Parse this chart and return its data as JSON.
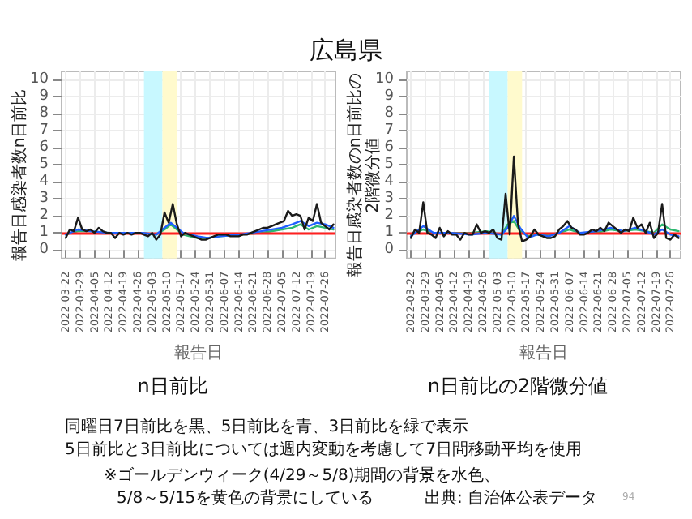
{
  "chart_data": [
    {
      "type": "line",
      "title": "n日前比",
      "xlabel": "報告日",
      "ylabel": "報告日感染者数n日前比",
      "annotations": [
        "広島県"
      ],
      "xlim": [
        "2022-03-20",
        "2022-07-31"
      ],
      "xticks": [
        "2022-03-22",
        "2022-03-29",
        "2022-04-05",
        "2022-04-12",
        "2022-04-19",
        "2022-04-26",
        "2022-05-03",
        "2022-05-10",
        "2022-05-17",
        "2022-05-24",
        "2022-05-31",
        "2022-06-07",
        "2022-06-14",
        "2022-06-21",
        "2022-06-28",
        "2022-07-05",
        "2022-07-12",
        "2022-07-19",
        "2022-07-26"
      ],
      "ylim": [
        -0.5,
        10.5
      ],
      "yticks": [
        0,
        1,
        2,
        3,
        4,
        5,
        6,
        7,
        8,
        9,
        10
      ],
      "grid": true,
      "marker": "none",
      "ref_lines": [
        {
          "axis": "y",
          "value": 1,
          "color": "#ff2020"
        }
      ],
      "bands": [
        {
          "axis": "x",
          "from": "2022-04-29",
          "to": "2022-05-08",
          "color": "#c8f8ff"
        },
        {
          "axis": "x",
          "from": "2022-05-08",
          "to": "2022-05-15",
          "color": "#fffacd"
        }
      ],
      "series": [
        {
          "color": "#1a1a1a",
          "x": [
            "2022-03-22",
            "2022-03-24",
            "2022-03-26",
            "2022-03-28",
            "2022-03-30",
            "2022-04-01",
            "2022-04-03",
            "2022-04-05",
            "2022-04-07",
            "2022-04-09",
            "2022-04-11",
            "2022-04-13",
            "2022-04-15",
            "2022-04-17",
            "2022-04-19",
            "2022-04-21",
            "2022-04-23",
            "2022-04-25",
            "2022-04-27",
            "2022-04-29",
            "2022-05-01",
            "2022-05-03",
            "2022-05-05",
            "2022-05-07",
            "2022-05-09",
            "2022-05-11",
            "2022-05-13",
            "2022-05-15",
            "2022-05-17",
            "2022-05-19",
            "2022-05-21",
            "2022-05-23",
            "2022-05-25",
            "2022-05-27",
            "2022-05-29",
            "2022-05-31",
            "2022-06-02",
            "2022-06-04",
            "2022-06-06",
            "2022-06-08",
            "2022-06-10",
            "2022-06-12",
            "2022-06-14",
            "2022-06-16",
            "2022-06-18",
            "2022-06-20",
            "2022-06-22",
            "2022-06-24",
            "2022-06-26",
            "2022-06-28",
            "2022-06-30",
            "2022-07-02",
            "2022-07-04",
            "2022-07-06",
            "2022-07-08",
            "2022-07-10",
            "2022-07-12",
            "2022-07-14",
            "2022-07-16",
            "2022-07-18",
            "2022-07-20",
            "2022-07-22",
            "2022-07-24",
            "2022-07-26",
            "2022-07-28",
            "2022-07-30"
          ],
          "values": [
            0.7,
            1.2,
            1.1,
            1.9,
            1.2,
            1.1,
            1.2,
            1.0,
            1.3,
            1.1,
            1.0,
            1.0,
            0.7,
            1.0,
            0.9,
            1.0,
            0.9,
            1.0,
            1.0,
            0.9,
            0.8,
            1.0,
            0.6,
            0.9,
            2.2,
            1.6,
            2.7,
            1.5,
            0.8,
            1.0,
            0.9,
            0.8,
            0.7,
            0.6,
            0.6,
            0.7,
            0.8,
            0.9,
            0.9,
            0.9,
            0.8,
            0.8,
            0.8,
            0.9,
            0.9,
            1.0,
            1.1,
            1.2,
            1.3,
            1.3,
            1.4,
            1.5,
            1.6,
            1.7,
            2.3,
            2.0,
            2.1,
            2.0,
            1.2,
            1.9,
            1.7,
            2.7,
            1.6,
            1.4,
            1.2,
            1.5
          ]
        },
        {
          "color": "#1f5fff",
          "x": [
            "2022-03-22",
            "2022-03-28",
            "2022-04-03",
            "2022-04-12",
            "2022-04-20",
            "2022-04-28",
            "2022-05-05",
            "2022-05-09",
            "2022-05-12",
            "2022-05-15",
            "2022-05-18",
            "2022-05-25",
            "2022-05-30",
            "2022-06-05",
            "2022-06-15",
            "2022-06-25",
            "2022-07-05",
            "2022-07-10",
            "2022-07-14",
            "2022-07-18",
            "2022-07-22",
            "2022-07-26",
            "2022-07-30"
          ],
          "values": [
            0.9,
            1.2,
            1.1,
            1.0,
            1.0,
            1.0,
            0.9,
            1.3,
            1.6,
            1.3,
            1.0,
            0.8,
            0.7,
            0.8,
            0.9,
            1.1,
            1.3,
            1.5,
            1.7,
            1.4,
            1.6,
            1.5,
            1.3
          ]
        },
        {
          "color": "#2db870",
          "x": [
            "2022-03-22",
            "2022-03-28",
            "2022-04-03",
            "2022-04-12",
            "2022-04-20",
            "2022-04-28",
            "2022-05-05",
            "2022-05-09",
            "2022-05-12",
            "2022-05-15",
            "2022-05-18",
            "2022-05-25",
            "2022-05-30",
            "2022-06-05",
            "2022-06-15",
            "2022-06-25",
            "2022-07-05",
            "2022-07-10",
            "2022-07-14",
            "2022-07-18",
            "2022-07-22",
            "2022-07-26",
            "2022-07-30"
          ],
          "values": [
            0.9,
            1.1,
            1.1,
            1.0,
            1.0,
            1.0,
            0.9,
            1.2,
            1.5,
            1.2,
            0.9,
            0.7,
            0.7,
            0.8,
            0.9,
            1.0,
            1.2,
            1.3,
            1.5,
            1.2,
            1.4,
            1.3,
            1.2
          ]
        }
      ]
    },
    {
      "type": "line",
      "title": "n日前比の2階微分値",
      "xlabel": "報告日",
      "ylabel": "報告日感染者数のn日前比の2階微分値",
      "annotations": [
        "同曜日7日前比を黒、5日前比を青、3日前比を緑で表示",
        "5日前比と3日前比については週内変動を考慮して7日間移動平均を使用",
        "※ゴールデンウィーク(4/29～5/8)期間の背景を水色、",
        "5/8～5/15を黄色の背景にしている",
        "出典: 自治体公表データ",
        "94"
      ],
      "xlim": [
        "2022-03-20",
        "2022-07-31"
      ],
      "xticks": [
        "2022-03-22",
        "2022-03-29",
        "2022-04-05",
        "2022-04-12",
        "2022-04-19",
        "2022-04-26",
        "2022-05-03",
        "2022-05-10",
        "2022-05-17",
        "2022-05-24",
        "2022-05-31",
        "2022-06-07",
        "2022-06-14",
        "2022-06-21",
        "2022-06-28",
        "2022-07-05",
        "2022-07-12",
        "2022-07-19",
        "2022-07-26"
      ],
      "ylim": [
        -0.5,
        10.5
      ],
      "yticks": [
        0,
        1,
        2,
        3,
        4,
        5,
        6,
        7,
        8,
        9,
        10
      ],
      "grid": true,
      "marker": "none",
      "ref_lines": [
        {
          "axis": "y",
          "value": 1,
          "color": "#ff2020"
        }
      ],
      "bands": [
        {
          "axis": "x",
          "from": "2022-04-29",
          "to": "2022-05-08",
          "color": "#c8f8ff"
        },
        {
          "axis": "x",
          "from": "2022-05-08",
          "to": "2022-05-15",
          "color": "#fffacd"
        }
      ],
      "series": [
        {
          "color": "#1a1a1a",
          "x": [
            "2022-03-22",
            "2022-03-24",
            "2022-03-26",
            "2022-03-28",
            "2022-03-30",
            "2022-04-01",
            "2022-04-03",
            "2022-04-05",
            "2022-04-07",
            "2022-04-09",
            "2022-04-11",
            "2022-04-13",
            "2022-04-15",
            "2022-04-17",
            "2022-04-19",
            "2022-04-21",
            "2022-04-23",
            "2022-04-25",
            "2022-04-27",
            "2022-04-29",
            "2022-05-01",
            "2022-05-03",
            "2022-05-05",
            "2022-05-07",
            "2022-05-09",
            "2022-05-11",
            "2022-05-13",
            "2022-05-15",
            "2022-05-17",
            "2022-05-19",
            "2022-05-21",
            "2022-05-23",
            "2022-05-25",
            "2022-05-27",
            "2022-05-29",
            "2022-05-31",
            "2022-06-02",
            "2022-06-04",
            "2022-06-06",
            "2022-06-08",
            "2022-06-10",
            "2022-06-12",
            "2022-06-14",
            "2022-06-16",
            "2022-06-18",
            "2022-06-20",
            "2022-06-22",
            "2022-06-24",
            "2022-06-26",
            "2022-06-28",
            "2022-06-30",
            "2022-07-02",
            "2022-07-04",
            "2022-07-06",
            "2022-07-08",
            "2022-07-10",
            "2022-07-12",
            "2022-07-14",
            "2022-07-16",
            "2022-07-18",
            "2022-07-20",
            "2022-07-22",
            "2022-07-24",
            "2022-07-26",
            "2022-07-28",
            "2022-07-30"
          ],
          "values": [
            0.7,
            1.2,
            1.0,
            2.8,
            1.0,
            0.9,
            0.7,
            1.3,
            0.8,
            1.1,
            0.9,
            0.9,
            0.6,
            1.0,
            0.9,
            0.9,
            1.5,
            1.0,
            1.1,
            1.0,
            1.2,
            0.7,
            0.6,
            3.3,
            0.9,
            5.5,
            1.5,
            0.5,
            0.6,
            0.8,
            1.2,
            0.9,
            0.8,
            0.7,
            0.7,
            0.8,
            1.2,
            1.4,
            1.7,
            1.3,
            1.2,
            0.9,
            0.9,
            1.0,
            1.2,
            1.1,
            1.3,
            1.1,
            1.6,
            1.4,
            1.2,
            1.0,
            1.2,
            1.1,
            1.9,
            1.3,
            1.5,
            1.0,
            1.6,
            0.7,
            1.0,
            2.7,
            0.7,
            0.6,
            0.9,
            0.7
          ]
        },
        {
          "color": "#1f5fff",
          "x": [
            "2022-03-22",
            "2022-03-28",
            "2022-04-02",
            "2022-04-10",
            "2022-04-20",
            "2022-04-28",
            "2022-05-05",
            "2022-05-08",
            "2022-05-11",
            "2022-05-14",
            "2022-05-18",
            "2022-05-22",
            "2022-05-28",
            "2022-06-02",
            "2022-06-07",
            "2022-06-12",
            "2022-06-20",
            "2022-06-27",
            "2022-07-03",
            "2022-07-09",
            "2022-07-14",
            "2022-07-18",
            "2022-07-22",
            "2022-07-26",
            "2022-07-30"
          ],
          "values": [
            0.8,
            1.4,
            1.0,
            1.0,
            0.9,
            1.0,
            0.9,
            1.3,
            2.0,
            1.3,
            0.7,
            0.9,
            0.8,
            1.0,
            1.4,
            1.0,
            1.1,
            1.3,
            1.1,
            1.3,
            1.1,
            0.9,
            1.2,
            0.9,
            0.8
          ]
        },
        {
          "color": "#2db870",
          "x": [
            "2022-03-22",
            "2022-03-28",
            "2022-04-02",
            "2022-04-10",
            "2022-04-20",
            "2022-04-28",
            "2022-05-05",
            "2022-05-08",
            "2022-05-11",
            "2022-05-14",
            "2022-05-18",
            "2022-05-22",
            "2022-05-28",
            "2022-06-02",
            "2022-06-07",
            "2022-06-12",
            "2022-06-20",
            "2022-06-27",
            "2022-07-03",
            "2022-07-09",
            "2022-07-14",
            "2022-07-18",
            "2022-07-22",
            "2022-07-26",
            "2022-07-30"
          ],
          "values": [
            0.9,
            1.2,
            1.0,
            1.0,
            1.0,
            1.1,
            0.9,
            1.5,
            1.7,
            1.1,
            0.8,
            0.9,
            0.9,
            1.0,
            1.2,
            1.0,
            1.0,
            1.2,
            1.1,
            1.2,
            1.1,
            1.0,
            1.5,
            1.2,
            1.1
          ]
        }
      ]
    }
  ]
}
